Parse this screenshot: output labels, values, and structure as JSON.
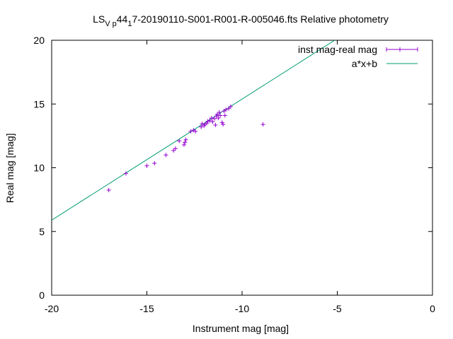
{
  "chart_data": {
    "type": "scatter",
    "title_parts": {
      "lead": "LS",
      "sub1": "V p",
      "mid": "44",
      "sub2": "1",
      "tail": "7-20190110-S001-R001-R-005046.fts Relative photometry"
    },
    "xlabel": "Instrument mag [mag]",
    "ylabel": "Real mag [mag]",
    "xlim": [
      -20,
      0
    ],
    "ylim": [
      0,
      20
    ],
    "x_ticks": [
      -20,
      -15,
      -10,
      -5,
      0
    ],
    "y_ticks": [
      0,
      5,
      10,
      15,
      20
    ],
    "x_tick_labels": [
      "-20",
      "-15",
      "-10",
      "-5",
      "0"
    ],
    "y_tick_labels": [
      "0",
      "5",
      "10",
      "15",
      "20"
    ],
    "grid": false,
    "legend_position": "top-right",
    "series": [
      {
        "name": "inst mag-real mag",
        "kind": "points-with-errorbars",
        "color": "#9400d3",
        "points": [
          {
            "x": -17.0,
            "y": 8.25
          },
          {
            "x": -16.1,
            "y": 9.55
          },
          {
            "x": -15.0,
            "y": 10.15
          },
          {
            "x": -14.6,
            "y": 10.35
          },
          {
            "x": -14.0,
            "y": 11.0
          },
          {
            "x": -13.6,
            "y": 11.35
          },
          {
            "x": -13.5,
            "y": 11.5
          },
          {
            "x": -13.3,
            "y": 12.1
          },
          {
            "x": -13.05,
            "y": 11.8
          },
          {
            "x": -13.0,
            "y": 12.0
          },
          {
            "x": -12.95,
            "y": 12.2
          },
          {
            "x": -12.7,
            "y": 12.85
          },
          {
            "x": -12.55,
            "y": 12.95
          },
          {
            "x": -12.45,
            "y": 12.85
          },
          {
            "x": -12.15,
            "y": 13.2
          },
          {
            "x": -12.1,
            "y": 13.45
          },
          {
            "x": -12.0,
            "y": 13.3
          },
          {
            "x": -11.95,
            "y": 13.4
          },
          {
            "x": -11.85,
            "y": 13.5
          },
          {
            "x": -11.8,
            "y": 13.65
          },
          {
            "x": -11.7,
            "y": 13.7
          },
          {
            "x": -11.6,
            "y": 13.9
          },
          {
            "x": -11.55,
            "y": 13.6
          },
          {
            "x": -11.45,
            "y": 13.85
          },
          {
            "x": -11.4,
            "y": 13.35
          },
          {
            "x": -11.35,
            "y": 14.05
          },
          {
            "x": -11.3,
            "y": 14.2
          },
          {
            "x": -11.25,
            "y": 13.9
          },
          {
            "x": -11.2,
            "y": 14.35
          },
          {
            "x": -11.15,
            "y": 14.1
          },
          {
            "x": -11.05,
            "y": 13.55
          },
          {
            "x": -11.0,
            "y": 13.4
          },
          {
            "x": -10.95,
            "y": 14.45
          },
          {
            "x": -10.9,
            "y": 14.1
          },
          {
            "x": -10.85,
            "y": 14.55
          },
          {
            "x": -10.7,
            "y": 14.65
          },
          {
            "x": -10.6,
            "y": 14.8
          },
          {
            "x": -8.9,
            "y": 13.4
          }
        ]
      },
      {
        "name": "a*x+b",
        "kind": "line",
        "color": "#009e73",
        "slope": 0.9495,
        "intercept": 24.88
      }
    ]
  }
}
